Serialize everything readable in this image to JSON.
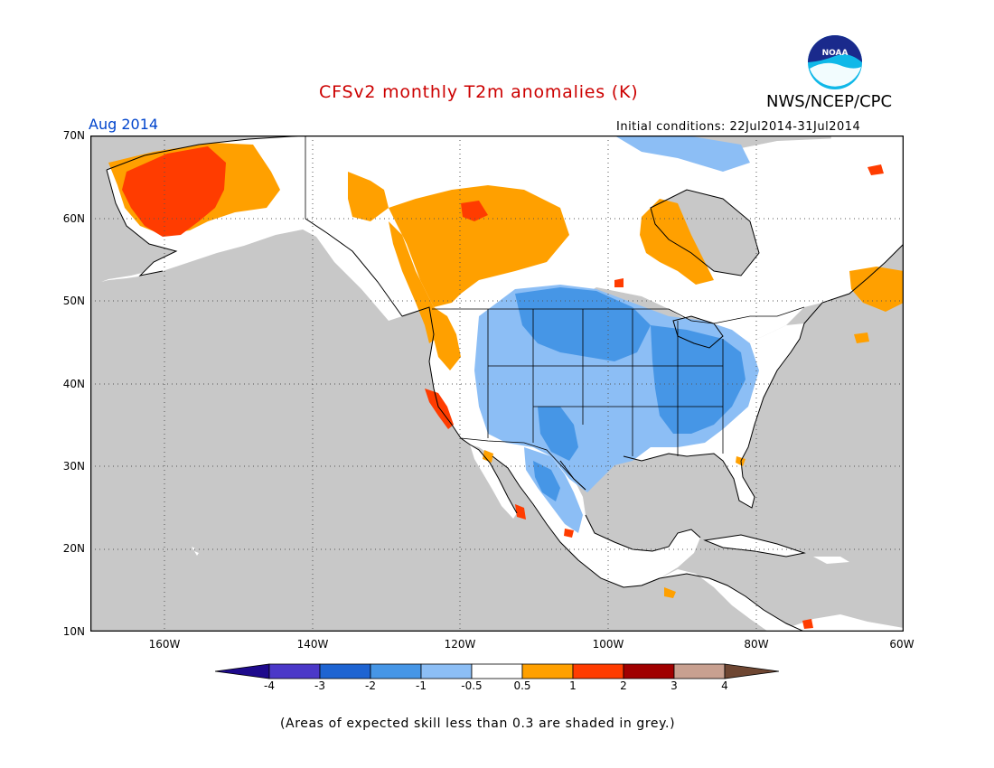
{
  "header": {
    "title": "CFSv2 monthly T2m anomalies (K)",
    "agency": "NWS/NCEP/CPC",
    "logo_text": "NOAA",
    "month": "Aug 2014",
    "init": "Initial conditions: 22Jul2014-31Jul2014"
  },
  "colors": {
    "title": "#cc0000",
    "month": "#0044cc",
    "ocean": "#c8c8c8",
    "land": "#ffffff",
    "coast": "#000000"
  },
  "axes": {
    "lat_labels": [
      "70N",
      "60N",
      "50N",
      "40N",
      "30N",
      "20N",
      "10N"
    ],
    "lon_labels": [
      "160W",
      "140W",
      "120W",
      "100W",
      "80W",
      "60W"
    ],
    "lat_range": [
      10,
      70
    ],
    "lon_range": [
      -170,
      -60
    ],
    "grid": "dotted"
  },
  "legend": {
    "labels": [
      "-4",
      "-3",
      "-2",
      "-1",
      "-0.5",
      "0.5",
      "1",
      "2",
      "3",
      "4"
    ],
    "colors": [
      "#1e0a8c",
      "#4b38c8",
      "#1e64d2",
      "#4696e6",
      "#8cbef5",
      "#ffffff",
      "#ffa000",
      "#ff3c00",
      "#a00000",
      "#c8a090",
      "#6e4632"
    ]
  },
  "footnote": "(Areas of expected skill less than 0.3 are shaded in grey.)"
}
